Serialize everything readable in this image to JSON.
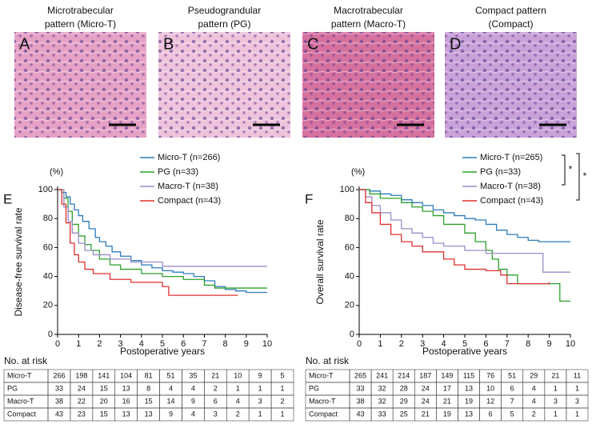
{
  "panels": [
    {
      "letter": "A",
      "title": [
        "Microtrabecular",
        "pattern (Micro-T)"
      ]
    },
    {
      "letter": "B",
      "title": [
        "Pseudograndular",
        "pattern (PG)"
      ]
    },
    {
      "letter": "C",
      "title": [
        "Macrotrabecular",
        "pattern (Macro-T)"
      ]
    },
    {
      "letter": "D",
      "title": [
        "Compact pattern",
        "(Compact)"
      ]
    }
  ],
  "chart_data": [
    {
      "type": "line",
      "step": true,
      "panel_label": "E",
      "unit_label": "(%)",
      "y_label": "Disease-free survival rate",
      "x_label": "Postoperative years",
      "xlim": [
        0,
        10
      ],
      "ylim": [
        0,
        100
      ],
      "xticks": [
        0,
        1,
        2,
        3,
        4,
        5,
        6,
        7,
        8,
        9,
        10
      ],
      "yticks": [
        0,
        20,
        40,
        60,
        80,
        100
      ],
      "series": [
        {
          "name": "Micro-T (n=266)",
          "color": "#2b7bba",
          "x": [
            0,
            0.2,
            0.4,
            0.6,
            0.8,
            1,
            1.2,
            1.5,
            1.8,
            2,
            2.3,
            2.6,
            3,
            3.5,
            4,
            4.5,
            5,
            5.5,
            6,
            6.5,
            7,
            7.5,
            8,
            8.5,
            9,
            10
          ],
          "values": [
            100,
            98,
            95,
            90,
            86,
            82,
            78,
            73,
            67,
            64,
            61,
            57,
            54,
            51,
            48,
            46,
            44,
            43,
            42,
            40,
            37,
            33,
            31,
            30,
            29,
            29
          ]
        },
        {
          "name": "PG (n=33)",
          "color": "#2ca02c",
          "x": [
            0,
            0.3,
            0.5,
            0.7,
            1,
            1.3,
            1.6,
            2,
            2.5,
            3,
            4,
            5,
            6,
            7,
            7.5,
            10
          ],
          "values": [
            100,
            94,
            85,
            76,
            68,
            62,
            58,
            52,
            48,
            45,
            42,
            40,
            38,
            34,
            32,
            32
          ]
        },
        {
          "name": "Macro-T (n=38)",
          "color": "#9a8cc6",
          "x": [
            0,
            0.3,
            0.5,
            0.7,
            1,
            1.3,
            1.7,
            2.5,
            3.5,
            5,
            10
          ],
          "values": [
            100,
            88,
            78,
            70,
            63,
            58,
            55,
            52,
            50,
            47,
            47
          ]
        },
        {
          "name": "Compact (n=43)",
          "color": "#e03030",
          "x": [
            0,
            0.2,
            0.4,
            0.6,
            0.8,
            1,
            1.3,
            1.7,
            2.5,
            3.5,
            5,
            5.3,
            8.6
          ],
          "values": [
            100,
            90,
            77,
            63,
            55,
            50,
            45,
            42,
            38,
            36,
            33,
            27,
            27
          ]
        }
      ]
    },
    {
      "type": "line",
      "step": true,
      "panel_label": "F",
      "unit_label": "(%)",
      "y_label": "Overall survival rate",
      "x_label": "Postoperative years",
      "xlim": [
        0,
        10
      ],
      "ylim": [
        0,
        100
      ],
      "xticks": [
        0,
        1,
        2,
        3,
        4,
        5,
        6,
        7,
        8,
        9,
        10
      ],
      "yticks": [
        0,
        20,
        40,
        60,
        80,
        100
      ],
      "annotations": [
        "*",
        "*"
      ],
      "series": [
        {
          "name": "Micro-T (n=265)",
          "color": "#2b7bba",
          "x": [
            0,
            0.5,
            1,
            1.5,
            2,
            2.5,
            3,
            3.5,
            4,
            4.5,
            5,
            5.5,
            6,
            6.5,
            7,
            7.5,
            8,
            8.5,
            10
          ],
          "values": [
            100,
            99,
            97,
            96,
            93,
            91,
            89,
            86,
            84,
            82,
            80,
            79,
            76,
            72,
            69,
            67,
            65,
            64,
            64
          ]
        },
        {
          "name": "PG (n=33)",
          "color": "#2ca02c",
          "x": [
            0,
            0.5,
            1,
            2,
            2.5,
            3,
            3.5,
            4,
            5,
            5.5,
            6,
            6.3,
            6.6,
            7,
            7.5,
            9.3,
            9.5,
            10
          ],
          "values": [
            100,
            97,
            94,
            91,
            88,
            85,
            82,
            76,
            70,
            64,
            58,
            52,
            45,
            41,
            35,
            35,
            23,
            23
          ]
        },
        {
          "name": "Macro-T (n=38)",
          "color": "#9a8cc6",
          "x": [
            0,
            0.3,
            0.6,
            1,
            1.5,
            2,
            2.5,
            3,
            3.5,
            4,
            5,
            6,
            8.5,
            8.7,
            10
          ],
          "values": [
            100,
            95,
            89,
            84,
            79,
            73,
            70,
            67,
            63,
            61,
            58,
            56,
            56,
            43,
            43
          ]
        },
        {
          "name": "Compact (n=43)",
          "color": "#e03030",
          "x": [
            0,
            0.3,
            0.6,
            1,
            1.5,
            2,
            2.5,
            3,
            4,
            4.5,
            5,
            6,
            6.7,
            7,
            8,
            9
          ],
          "values": [
            100,
            91,
            84,
            76,
            69,
            64,
            61,
            57,
            52,
            48,
            45,
            44,
            41,
            35,
            35,
            36
          ]
        }
      ]
    }
  ],
  "risk_tables": [
    {
      "heading": "No. at risk",
      "rows": [
        [
          "Micro-T",
          266,
          198,
          141,
          104,
          81,
          51,
          35,
          21,
          10,
          9,
          5
        ],
        [
          "PG",
          33,
          24,
          15,
          13,
          8,
          4,
          4,
          2,
          1,
          1,
          1
        ],
        [
          "Macro-T",
          38,
          22,
          20,
          16,
          15,
          14,
          9,
          6,
          4,
          3,
          2
        ],
        [
          "Compact",
          43,
          23,
          15,
          13,
          13,
          9,
          4,
          3,
          2,
          1,
          1
        ]
      ]
    },
    {
      "heading": "No. at risk",
      "rows": [
        [
          "Micro-T",
          265,
          241,
          214,
          187,
          149,
          115,
          76,
          51,
          29,
          21,
          11
        ],
        [
          "PG",
          33,
          32,
          28,
          24,
          17,
          13,
          10,
          6,
          4,
          1,
          1
        ],
        [
          "Macro-T",
          38,
          32,
          29,
          24,
          21,
          19,
          12,
          7,
          4,
          3,
          3
        ],
        [
          "Compact",
          43,
          33,
          25,
          21,
          19,
          13,
          6,
          5,
          2,
          1,
          1
        ]
      ]
    }
  ]
}
